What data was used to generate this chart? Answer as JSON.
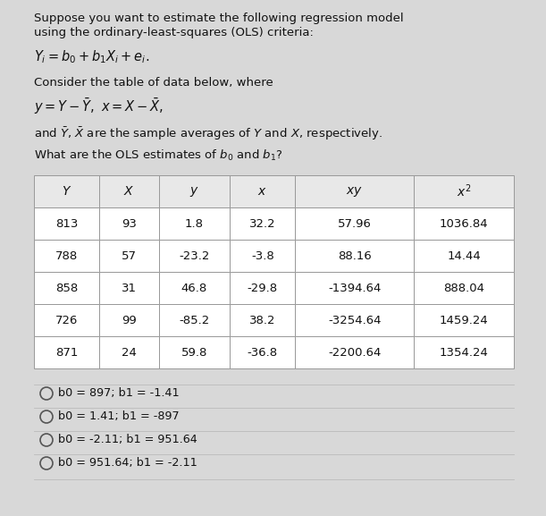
{
  "title_line1": "Suppose you want to estimate the following regression model",
  "title_line2": "using the ordinary-least-squares (OLS) criteria:",
  "equation1": "$Y_i = b_0 + b_1 X_i + e_i.$",
  "text1": "Consider the table of data below, where",
  "equation2": "$y = Y - \\bar{Y},\\ x = X - \\bar{X},$",
  "text2": "and $\\bar{Y}$, $\\bar{X}$ are the sample averages of $Y$ and $X$, respectively.",
  "question": "What are the OLS estimates of $b_0$ and $b_1$?",
  "col_headers_plain": [
    "Y",
    "X",
    "y",
    "x",
    "xy",
    "x²"
  ],
  "col_headers_math": [
    "$Y$",
    "$X$",
    "$y$",
    "$x$",
    "$xy$",
    "$x^2$"
  ],
  "table_data_str": [
    [
      "813",
      "93",
      "1.8",
      "32.2",
      "57.96",
      "1036.84"
    ],
    [
      "788",
      "57",
      "-23.2",
      "-3.8",
      "88.16",
      "14.44"
    ],
    [
      "858",
      "31",
      "46.8",
      "-29.8",
      "-1394.64",
      "888.04"
    ],
    [
      "726",
      "99",
      "-85.2",
      "38.2",
      "-3254.64",
      "1459.24"
    ],
    [
      "871",
      "24",
      "59.8",
      "-36.8",
      "-2200.64",
      "1354.24"
    ]
  ],
  "options": [
    "b0 = 897; b1 = -1.41",
    "b0 = 1.41; b1 = -897",
    "b0 = -2.11; b1 = 951.64",
    "b0 = 951.64; b1 = -2.11"
  ],
  "bg_color": "#d8d8d8",
  "table_bg": "#ffffff",
  "header_bg": "#e8e8e8",
  "text_color": "#111111",
  "border_color": "#999999"
}
